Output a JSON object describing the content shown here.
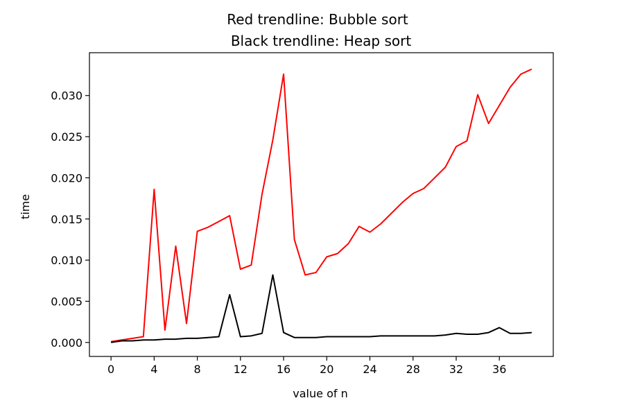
{
  "chart_data": {
    "type": "line",
    "title_lines": [
      "Red trendline: Bubble sort",
      "Black trendline: Heap sort"
    ],
    "xlabel": "value of n",
    "ylabel": "time",
    "xlim": [
      -2,
      41
    ],
    "ylim": [
      -0.0017,
      0.0352
    ],
    "grid": false,
    "x_ticks": [
      0,
      4,
      8,
      12,
      16,
      20,
      24,
      28,
      32,
      36
    ],
    "x_tick_labels": [
      "0",
      "4",
      "8",
      "12",
      "16",
      "20",
      "24",
      "28",
      "32",
      "36"
    ],
    "y_ticks": [
      0,
      0.005,
      0.01,
      0.015,
      0.02,
      0.025,
      0.03
    ],
    "y_tick_labels": [
      "0.000",
      "0.005",
      "0.010",
      "0.015",
      "0.020",
      "0.025",
      "0.030"
    ],
    "x": [
      0,
      1,
      2,
      3,
      4,
      5,
      6,
      7,
      8,
      9,
      10,
      11,
      12,
      13,
      14,
      15,
      16,
      17,
      18,
      19,
      20,
      21,
      22,
      23,
      24,
      25,
      26,
      27,
      28,
      29,
      30,
      31,
      32,
      33,
      34,
      35,
      36,
      37,
      38,
      39
    ],
    "series": [
      {
        "color": "#ff0000",
        "values": [
          0.0001,
          0.0003,
          0.0005,
          0.0007,
          0.0186,
          0.0015,
          0.0117,
          0.0023,
          0.0135,
          0.014,
          0.0147,
          0.0154,
          0.0089,
          0.0094,
          0.018,
          0.0246,
          0.0326,
          0.0125,
          0.0082,
          0.0085,
          0.0104,
          0.0108,
          0.012,
          0.0141,
          0.0134,
          0.0144,
          0.0157,
          0.017,
          0.0181,
          0.0187,
          0.02,
          0.0213,
          0.0238,
          0.0245,
          0.0301,
          0.0266,
          0.0288,
          0.031,
          0.0326,
          0.0332
        ]
      },
      {
        "color": "#000000",
        "values": [
          0.0,
          0.0002,
          0.0002,
          0.0003,
          0.0003,
          0.0004,
          0.0004,
          0.0005,
          0.0005,
          0.0006,
          0.0007,
          0.0058,
          0.0007,
          0.0008,
          0.0011,
          0.0082,
          0.0012,
          0.0006,
          0.0006,
          0.0006,
          0.0007,
          0.0007,
          0.0007,
          0.0007,
          0.0007,
          0.0008,
          0.0008,
          0.0008,
          0.0008,
          0.0008,
          0.0008,
          0.0009,
          0.0011,
          0.001,
          0.001,
          0.0012,
          0.0018,
          0.0011,
          0.0011,
          0.0012
        ]
      }
    ]
  }
}
